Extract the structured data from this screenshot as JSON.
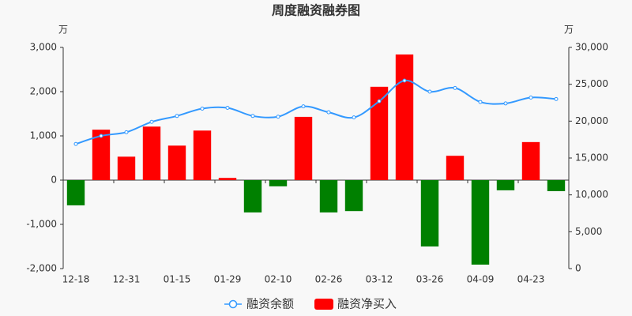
{
  "chart_data": {
    "type": "bar-line",
    "title": "周度融资融券图",
    "y_unit": "万",
    "y2_unit": "万",
    "categories": [
      "12-18",
      null,
      "12-31",
      null,
      "01-15",
      null,
      "01-29",
      null,
      "02-10",
      null,
      "02-26",
      null,
      "03-12",
      null,
      "03-26",
      null,
      "04-09",
      null,
      "04-23",
      null
    ],
    "ylim": [
      -2000,
      3000
    ],
    "yticks": [
      {
        "value": -2000,
        "label": "-2,000"
      },
      {
        "value": -1000,
        "label": "-1,000"
      },
      0,
      {
        "value": 1000,
        "label": "1,000"
      },
      {
        "value": 2000,
        "label": "2,000"
      },
      {
        "value": 3000,
        "label": "3,000"
      }
    ],
    "y2lim": [
      0,
      30000
    ],
    "y2ticks": [
      0,
      {
        "value": 5000,
        "label": "5,000"
      },
      {
        "value": 10000,
        "label": "10,000"
      },
      {
        "value": 15000,
        "label": "15,000"
      },
      {
        "value": 20000,
        "label": "20,000"
      },
      {
        "value": 25000,
        "label": "25,000"
      },
      {
        "value": 30000,
        "label": "30,000"
      }
    ],
    "series": [
      {
        "name": "融资净买入",
        "type": "bar",
        "color": "#ff0000",
        "negative_color": "#008000",
        "values": [
          -570,
          1140,
          530,
          1210,
          780,
          1120,
          50,
          -730,
          -140,
          1430,
          -730,
          -700,
          2110,
          2840,
          -1500,
          550,
          -1910,
          -230,
          860,
          -250
        ]
      },
      {
        "name": "融资余额",
        "type": "line",
        "axis": "y2",
        "color": "#3399ff",
        "values": [
          16900,
          18000,
          18500,
          19900,
          20700,
          21700,
          21800,
          20700,
          20600,
          22000,
          21200,
          20500,
          22700,
          25500,
          24000,
          24500,
          22600,
          22400,
          23200,
          23000
        ]
      }
    ]
  }
}
